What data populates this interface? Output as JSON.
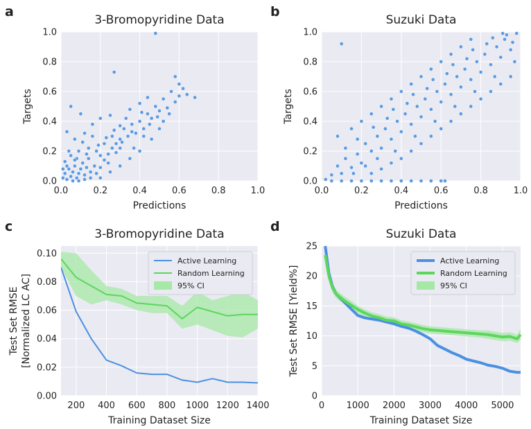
{
  "figure": {
    "colors": {
      "plot_bg": "#eaeaf2",
      "grid": "#ffffff",
      "active": "#4a90e2",
      "random": "#5cd65c",
      "ci": "#a6e8a6",
      "scatter": "#5b9be3"
    }
  },
  "chart_data": [
    {
      "panel": "a",
      "type": "scatter",
      "title": "3-Bromopyridine Data",
      "xlabel": "Predictions",
      "ylabel": "Targets",
      "xlim": [
        0.0,
        1.0
      ],
      "ylim": [
        0.0,
        1.0
      ],
      "xticks": [
        "0.0",
        "0.2",
        "0.4",
        "0.6",
        "0.8",
        "1.0"
      ],
      "yticks": [
        "0.0",
        "0.2",
        "0.4",
        "0.6",
        "0.8",
        "1.0"
      ],
      "points": [
        [
          0.01,
          0.02
        ],
        [
          0.02,
          0.05
        ],
        [
          0.03,
          0.01
        ],
        [
          0.04,
          0.08
        ],
        [
          0.05,
          0.03
        ],
        [
          0.06,
          0.06
        ],
        [
          0.07,
          0.1
        ],
        [
          0.08,
          0.02
        ],
        [
          0.09,
          0.05
        ],
        [
          0.1,
          0.08
        ],
        [
          0.11,
          0.12
        ],
        [
          0.12,
          0.04
        ],
        [
          0.13,
          0.09
        ],
        [
          0.14,
          0.15
        ],
        [
          0.15,
          0.06
        ],
        [
          0.02,
          0.13
        ],
        [
          0.05,
          0.17
        ],
        [
          0.08,
          0.15
        ],
        [
          0.03,
          0.1
        ],
        [
          0.06,
          0.0
        ],
        [
          0.09,
          0.0
        ],
        [
          0.12,
          0.01
        ],
        [
          0.15,
          0.02
        ],
        [
          0.18,
          0.05
        ],
        [
          0.2,
          0.09
        ],
        [
          0.22,
          0.14
        ],
        [
          0.24,
          0.18
        ],
        [
          0.26,
          0.22
        ],
        [
          0.28,
          0.25
        ],
        [
          0.3,
          0.28
        ],
        [
          0.18,
          0.2
        ],
        [
          0.2,
          0.17
        ],
        [
          0.22,
          0.25
        ],
        [
          0.24,
          0.12
        ],
        [
          0.26,
          0.3
        ],
        [
          0.28,
          0.19
        ],
        [
          0.3,
          0.22
        ],
        [
          0.32,
          0.35
        ],
        [
          0.34,
          0.3
        ],
        [
          0.36,
          0.38
        ],
        [
          0.38,
          0.32
        ],
        [
          0.4,
          0.4
        ],
        [
          0.42,
          0.35
        ],
        [
          0.44,
          0.45
        ],
        [
          0.46,
          0.42
        ],
        [
          0.48,
          0.5
        ],
        [
          0.5,
          0.47
        ],
        [
          0.52,
          0.55
        ],
        [
          0.54,
          0.49
        ],
        [
          0.56,
          0.6
        ],
        [
          0.58,
          0.53
        ],
        [
          0.6,
          0.57
        ],
        [
          0.62,
          0.62
        ],
        [
          0.64,
          0.58
        ],
        [
          0.68,
          0.56
        ],
        [
          0.6,
          0.65
        ],
        [
          0.58,
          0.7
        ],
        [
          0.48,
          0.99
        ],
        [
          0.27,
          0.73
        ],
        [
          0.05,
          0.5
        ],
        [
          0.1,
          0.45
        ],
        [
          0.03,
          0.33
        ],
        [
          0.07,
          0.28
        ],
        [
          0.12,
          0.32
        ],
        [
          0.16,
          0.38
        ],
        [
          0.2,
          0.42
        ],
        [
          0.25,
          0.44
        ],
        [
          0.3,
          0.37
        ],
        [
          0.35,
          0.48
        ],
        [
          0.4,
          0.52
        ],
        [
          0.44,
          0.56
        ],
        [
          0.46,
          0.28
        ],
        [
          0.5,
          0.35
        ],
        [
          0.4,
          0.2
        ],
        [
          0.35,
          0.15
        ],
        [
          0.3,
          0.1
        ],
        [
          0.25,
          0.06
        ],
        [
          0.2,
          0.02
        ],
        [
          0.17,
          0.1
        ],
        [
          0.14,
          0.22
        ],
        [
          0.33,
          0.42
        ],
        [
          0.37,
          0.22
        ],
        [
          0.42,
          0.3
        ],
        [
          0.45,
          0.38
        ],
        [
          0.52,
          0.4
        ],
        [
          0.55,
          0.45
        ],
        [
          0.49,
          0.43
        ],
        [
          0.41,
          0.46
        ],
        [
          0.36,
          0.33
        ],
        [
          0.31,
          0.26
        ],
        [
          0.27,
          0.34
        ],
        [
          0.23,
          0.29
        ],
        [
          0.19,
          0.24
        ],
        [
          0.16,
          0.3
        ],
        [
          0.13,
          0.18
        ],
        [
          0.11,
          0.26
        ],
        [
          0.09,
          0.2
        ],
        [
          0.07,
          0.14
        ],
        [
          0.04,
          0.2
        ],
        [
          0.01,
          0.08
        ]
      ]
    },
    {
      "panel": "b",
      "type": "scatter",
      "title": "Suzuki Data",
      "xlabel": "Predictions",
      "ylabel": "Targets",
      "xlim": [
        0.0,
        1.0
      ],
      "ylim": [
        0.0,
        1.0
      ],
      "xticks": [
        "0.0",
        "0.2",
        "0.4",
        "0.6",
        "0.8",
        "1.0"
      ],
      "yticks": [
        "0.0",
        "0.2",
        "0.4",
        "0.6",
        "0.8",
        "1.0"
      ],
      "points": [
        [
          0.02,
          0.01
        ],
        [
          0.05,
          0.04
        ],
        [
          0.08,
          0.1
        ],
        [
          0.1,
          0.05
        ],
        [
          0.12,
          0.15
        ],
        [
          0.15,
          0.09
        ],
        [
          0.18,
          0.18
        ],
        [
          0.2,
          0.12
        ],
        [
          0.22,
          0.25
        ],
        [
          0.25,
          0.2
        ],
        [
          0.28,
          0.3
        ],
        [
          0.3,
          0.22
        ],
        [
          0.32,
          0.35
        ],
        [
          0.35,
          0.28
        ],
        [
          0.38,
          0.4
        ],
        [
          0.4,
          0.33
        ],
        [
          0.42,
          0.45
        ],
        [
          0.45,
          0.38
        ],
        [
          0.48,
          0.5
        ],
        [
          0.5,
          0.43
        ],
        [
          0.52,
          0.55
        ],
        [
          0.55,
          0.48
        ],
        [
          0.58,
          0.6
        ],
        [
          0.6,
          0.53
        ],
        [
          0.62,
          0.65
        ],
        [
          0.65,
          0.58
        ],
        [
          0.68,
          0.7
        ],
        [
          0.7,
          0.63
        ],
        [
          0.72,
          0.75
        ],
        [
          0.75,
          0.68
        ],
        [
          0.78,
          0.8
        ],
        [
          0.8,
          0.73
        ],
        [
          0.82,
          0.85
        ],
        [
          0.85,
          0.78
        ],
        [
          0.88,
          0.9
        ],
        [
          0.9,
          0.83
        ],
        [
          0.92,
          0.95
        ],
        [
          0.95,
          0.88
        ],
        [
          0.98,
          0.99
        ],
        [
          0.96,
          0.93
        ],
        [
          0.1,
          0.92
        ],
        [
          0.08,
          0.3
        ],
        [
          0.15,
          0.35
        ],
        [
          0.2,
          0.4
        ],
        [
          0.25,
          0.45
        ],
        [
          0.3,
          0.5
        ],
        [
          0.35,
          0.55
        ],
        [
          0.4,
          0.6
        ],
        [
          0.45,
          0.65
        ],
        [
          0.5,
          0.7
        ],
        [
          0.55,
          0.75
        ],
        [
          0.6,
          0.8
        ],
        [
          0.65,
          0.85
        ],
        [
          0.7,
          0.9
        ],
        [
          0.75,
          0.95
        ],
        [
          0.25,
          0.05
        ],
        [
          0.3,
          0.08
        ],
        [
          0.35,
          0.12
        ],
        [
          0.4,
          0.15
        ],
        [
          0.45,
          0.2
        ],
        [
          0.5,
          0.25
        ],
        [
          0.55,
          0.3
        ],
        [
          0.6,
          0.35
        ],
        [
          0.65,
          0.4
        ],
        [
          0.7,
          0.45
        ],
        [
          0.75,
          0.5
        ],
        [
          0.8,
          0.55
        ],
        [
          0.85,
          0.6
        ],
        [
          0.9,
          0.65
        ],
        [
          0.95,
          0.7
        ],
        [
          0.05,
          0.0
        ],
        [
          0.1,
          0.0
        ],
        [
          0.15,
          0.0
        ],
        [
          0.2,
          0.0
        ],
        [
          0.25,
          0.0
        ],
        [
          0.3,
          0.0
        ],
        [
          0.35,
          0.0
        ],
        [
          0.4,
          0.0
        ],
        [
          0.45,
          0.0
        ],
        [
          0.5,
          0.0
        ],
        [
          0.55,
          0.0
        ],
        [
          0.6,
          0.0
        ],
        [
          0.62,
          0.0
        ],
        [
          0.18,
          0.28
        ],
        [
          0.22,
          0.1
        ],
        [
          0.28,
          0.15
        ],
        [
          0.33,
          0.42
        ],
        [
          0.37,
          0.2
        ],
        [
          0.43,
          0.52
        ],
        [
          0.47,
          0.3
        ],
        [
          0.53,
          0.62
        ],
        [
          0.57,
          0.4
        ],
        [
          0.63,
          0.72
        ],
        [
          0.67,
          0.5
        ],
        [
          0.73,
          0.82
        ],
        [
          0.77,
          0.6
        ],
        [
          0.83,
          0.92
        ],
        [
          0.87,
          0.7
        ],
        [
          0.93,
          0.98
        ],
        [
          0.97,
          0.8
        ],
        [
          0.12,
          0.22
        ],
        [
          0.16,
          0.05
        ],
        [
          0.26,
          0.36
        ],
        [
          0.36,
          0.48
        ],
        [
          0.46,
          0.58
        ],
        [
          0.56,
          0.68
        ],
        [
          0.66,
          0.78
        ],
        [
          0.76,
          0.88
        ],
        [
          0.86,
          0.96
        ],
        [
          0.91,
          0.99
        ]
      ]
    },
    {
      "panel": "c",
      "type": "line",
      "title": "3-Bromopyridine Data",
      "xlabel": "Training Dataset Size",
      "ylabel": "Test Set RMSE",
      "ylabel2": "[Normalized LC AC]",
      "xlim": [
        100,
        1400
      ],
      "ylim": [
        0.0,
        0.105
      ],
      "xticks": [
        200,
        400,
        600,
        800,
        1000,
        1200,
        1400
      ],
      "xtick_labels": [
        "200",
        "400",
        "600",
        "800",
        "1000",
        "1200",
        "1400"
      ],
      "yticks": [
        0.0,
        0.02,
        0.04,
        0.06,
        0.08,
        0.1
      ],
      "ytick_labels": [
        "0.00",
        "0.02",
        "0.04",
        "0.06",
        "0.08",
        "0.10"
      ],
      "x": [
        100,
        200,
        300,
        400,
        500,
        600,
        700,
        800,
        900,
        1000,
        1100,
        1200,
        1300,
        1400
      ],
      "series": [
        {
          "name": "Active Learning",
          "values": [
            0.09,
            0.059,
            0.04,
            0.025,
            0.021,
            0.016,
            0.015,
            0.015,
            0.011,
            0.0095,
            0.012,
            0.0095,
            0.0095,
            0.009
          ]
        },
        {
          "name": "Random Learning",
          "values": [
            0.096,
            0.083,
            0.077,
            0.071,
            0.07,
            0.065,
            0.064,
            0.063,
            0.054,
            0.062,
            0.059,
            0.056,
            0.057,
            0.057
          ]
        }
      ],
      "ci": {
        "name": "95% CI",
        "lower": [
          0.09,
          0.07,
          0.064,
          0.067,
          0.064,
          0.06,
          0.058,
          0.058,
          0.047,
          0.05,
          0.046,
          0.042,
          0.041,
          0.047
        ],
        "upper": [
          0.101,
          0.1,
          0.088,
          0.077,
          0.075,
          0.07,
          0.07,
          0.07,
          0.063,
          0.073,
          0.067,
          0.07,
          0.073,
          0.067
        ]
      },
      "legend": [
        "Active Learning",
        "Random Learning",
        "95% CI"
      ]
    },
    {
      "panel": "d",
      "type": "line",
      "title": "Suzuki Data",
      "xlabel": "Training Dataset Size",
      "ylabel": "Test Set RMSE [Yield%]",
      "xlim": [
        0,
        5500
      ],
      "ylim": [
        0,
        25
      ],
      "xticks": [
        0,
        1000,
        2000,
        3000,
        4000,
        5000
      ],
      "xtick_labels": [
        "0",
        "1000",
        "2000",
        "3000",
        "4000",
        "5000"
      ],
      "yticks": [
        0,
        5,
        10,
        15,
        20,
        25
      ],
      "ytick_labels": [
        "0",
        "5",
        "10",
        "15",
        "20",
        "25"
      ],
      "x": [
        100,
        200,
        300,
        400,
        500,
        600,
        800,
        1000,
        1200,
        1400,
        1600,
        1800,
        2000,
        2200,
        2400,
        2600,
        2800,
        3000,
        3200,
        3400,
        3600,
        3800,
        4000,
        4200,
        4400,
        4600,
        4800,
        5000,
        5200,
        5400,
        5500
      ],
      "series": [
        {
          "name": "Active Learning",
          "values": [
            25.0,
            20.5,
            18.2,
            17.0,
            16.4,
            15.8,
            14.6,
            13.4,
            13.0,
            12.8,
            12.6,
            12.3,
            12.0,
            11.6,
            11.3,
            10.8,
            10.2,
            9.5,
            8.4,
            7.8,
            7.2,
            6.7,
            6.1,
            5.8,
            5.5,
            5.1,
            4.9,
            4.6,
            4.1,
            3.9,
            3.9
          ]
        },
        {
          "name": "Random Learning",
          "values": [
            23.5,
            20.0,
            18.0,
            17.0,
            16.5,
            16.0,
            15.2,
            14.4,
            13.8,
            13.3,
            13.0,
            12.6,
            12.5,
            12.0,
            11.8,
            11.5,
            11.2,
            11.0,
            10.9,
            10.8,
            10.7,
            10.6,
            10.5,
            10.4,
            10.3,
            10.2,
            10.0,
            9.8,
            9.9,
            9.5,
            10.2
          ]
        }
      ],
      "ci": {
        "name": "95% CI",
        "lower": [
          22.7,
          19.2,
          17.2,
          16.3,
          15.8,
          15.3,
          14.5,
          13.8,
          13.2,
          12.7,
          12.4,
          12.0,
          11.9,
          11.4,
          11.2,
          10.9,
          10.6,
          10.4,
          10.3,
          10.2,
          10.1,
          10.0,
          9.9,
          9.8,
          9.7,
          9.5,
          9.3,
          9.1,
          9.2,
          8.8,
          9.3
        ],
        "upper": [
          24.3,
          20.8,
          18.8,
          17.7,
          17.2,
          16.7,
          15.9,
          15.0,
          14.4,
          13.9,
          13.6,
          13.2,
          13.1,
          12.6,
          12.4,
          12.1,
          11.8,
          11.6,
          11.5,
          11.4,
          11.3,
          11.2,
          11.1,
          11.0,
          10.9,
          10.9,
          10.7,
          10.5,
          10.6,
          10.2,
          11.1
        ]
      },
      "legend": [
        "Active Learning",
        "Random Learning",
        "95% CI"
      ]
    }
  ]
}
